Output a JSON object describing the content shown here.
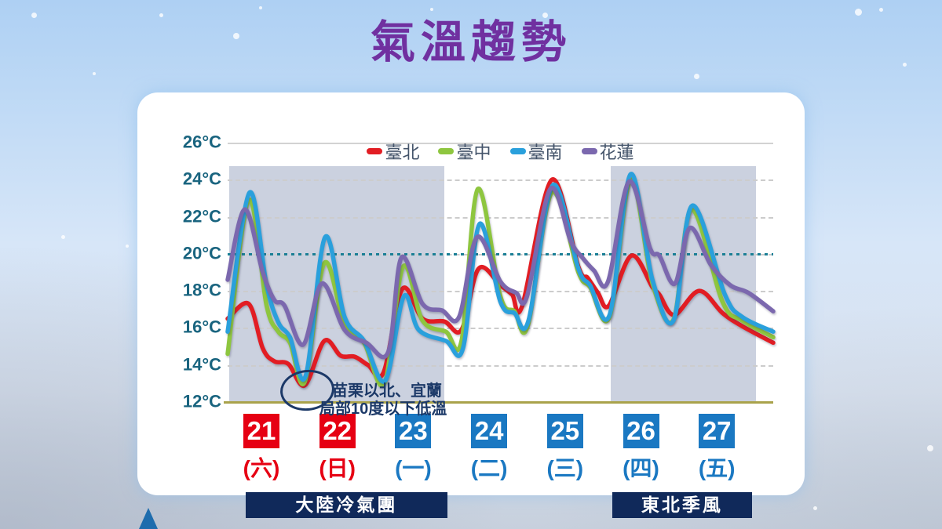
{
  "title": "氣溫趨勢",
  "colors": {
    "title": "#7030a0",
    "axis_label": "#19647f",
    "legend_text": "#44546a",
    "gridline": "#cccccc",
    "baseline": "#a9a24b",
    "reference_dotted": "#1b7f96",
    "shaded_band": "#cbd1df",
    "highlight_day": "#e60013",
    "normal_day": "#1a78c2",
    "cold_bar_bg": "#10295a",
    "cold_bar_text": "#ffffff",
    "annotation": "#1c3968",
    "panel_bg": "#ffffff"
  },
  "y_axis": {
    "labels": [
      "26°C",
      "24°C",
      "22°C",
      "20°C",
      "18°C",
      "16°C",
      "14°C",
      "12°C"
    ],
    "max": 26,
    "min": 12,
    "step": 2
  },
  "days": [
    {
      "date": "21",
      "weekday": "(六)",
      "highlight": true
    },
    {
      "date": "22",
      "weekday": "(日)",
      "highlight": true
    },
    {
      "date": "23",
      "weekday": "(一)",
      "highlight": false
    },
    {
      "date": "24",
      "weekday": "(二)",
      "highlight": false
    },
    {
      "date": "25",
      "weekday": "(三)",
      "highlight": false
    },
    {
      "date": "26",
      "weekday": "(四)",
      "highlight": false
    },
    {
      "date": "27",
      "weekday": "(五)",
      "highlight": false
    }
  ],
  "cold_periods": [
    {
      "label": "大陸冷氣團",
      "band_u": [
        0.02,
        2.78
      ],
      "bar_u": [
        0.23,
        2.82
      ]
    },
    {
      "label": "東北季風",
      "band_u": [
        4.91,
        6.78
      ],
      "bar_u": [
        4.93,
        6.73
      ]
    }
  ],
  "annotation": {
    "line1": "苗栗以北、宜蘭",
    "line2": "局部10度以下低溫"
  },
  "chart_data": {
    "type": "line",
    "title": "氣溫趨勢",
    "x_range_days": [
      0,
      7
    ],
    "x_tick_dates": [
      "21",
      "22",
      "23",
      "24",
      "25",
      "26",
      "27"
    ],
    "ylim": [
      12,
      26
    ],
    "y_unit": "°C",
    "reference_line_c": 20,
    "grid": true,
    "legend_position": "top",
    "series": [
      {
        "name": "臺北",
        "color": "#e21d23",
        "points": [
          [
            0,
            16.5
          ],
          [
            0.27,
            17.3
          ],
          [
            0.45,
            14.9
          ],
          [
            0.6,
            14.2
          ],
          [
            0.78,
            14.05
          ],
          [
            0.99,
            12.9
          ],
          [
            1.24,
            15.3
          ],
          [
            1.45,
            14.5
          ],
          [
            1.63,
            14.45
          ],
          [
            1.8,
            14.0
          ],
          [
            2.0,
            13.6
          ],
          [
            2.24,
            18.1
          ],
          [
            2.5,
            16.5
          ],
          [
            2.78,
            16.35
          ],
          [
            3.0,
            15.9
          ],
          [
            3.22,
            19.2
          ],
          [
            3.5,
            18.3
          ],
          [
            3.65,
            17.8
          ],
          [
            3.78,
            17.2
          ],
          [
            4.16,
            24.0
          ],
          [
            4.5,
            19.3
          ],
          [
            4.62,
            18.7
          ],
          [
            4.75,
            17.9
          ],
          [
            4.89,
            17.2
          ],
          [
            5.18,
            19.9
          ],
          [
            5.45,
            18.2
          ],
          [
            5.54,
            17.8
          ],
          [
            5.73,
            16.7
          ],
          [
            6.05,
            18.0
          ],
          [
            6.35,
            16.8
          ],
          [
            6.6,
            16.1
          ],
          [
            7,
            15.2
          ]
        ]
      },
      {
        "name": "臺中",
        "color": "#8ec63f",
        "points": [
          [
            0,
            14.6
          ],
          [
            0.27,
            22.9
          ],
          [
            0.5,
            17.2
          ],
          [
            0.65,
            15.8
          ],
          [
            0.8,
            15.2
          ],
          [
            0.99,
            13.1
          ],
          [
            1.24,
            19.5
          ],
          [
            1.5,
            16.2
          ],
          [
            1.75,
            15.2
          ],
          [
            2.01,
            13.0
          ],
          [
            2.25,
            19.3
          ],
          [
            2.5,
            16.4
          ],
          [
            2.8,
            15.8
          ],
          [
            3.0,
            15.3
          ],
          [
            3.21,
            23.5
          ],
          [
            3.5,
            17.7
          ],
          [
            3.68,
            16.9
          ],
          [
            3.85,
            16.1
          ],
          [
            4.16,
            23.3
          ],
          [
            4.5,
            19.0
          ],
          [
            4.65,
            18.2
          ],
          [
            4.9,
            16.6
          ],
          [
            5.17,
            24.0
          ],
          [
            5.45,
            18.4
          ],
          [
            5.72,
            16.45
          ],
          [
            5.95,
            22.4
          ],
          [
            6.35,
            17.4
          ],
          [
            6.6,
            16.4
          ],
          [
            7,
            15.5
          ]
        ]
      },
      {
        "name": "臺南",
        "color": "#2aa0dc",
        "points": [
          [
            0,
            15.8
          ],
          [
            0.28,
            23.3
          ],
          [
            0.5,
            18.3
          ],
          [
            0.65,
            16.3
          ],
          [
            0.8,
            15.5
          ],
          [
            1.0,
            13.4
          ],
          [
            1.25,
            20.9
          ],
          [
            1.5,
            16.6
          ],
          [
            1.75,
            15.3
          ],
          [
            2.02,
            13.15
          ],
          [
            2.26,
            17.7
          ],
          [
            2.45,
            15.9
          ],
          [
            2.8,
            15.3
          ],
          [
            3.02,
            14.9
          ],
          [
            3.23,
            21.6
          ],
          [
            3.5,
            17.4
          ],
          [
            3.68,
            16.8
          ],
          [
            3.86,
            16.4
          ],
          [
            4.17,
            23.7
          ],
          [
            4.5,
            19.2
          ],
          [
            4.65,
            18.3
          ],
          [
            4.9,
            16.7
          ],
          [
            5.17,
            24.3
          ],
          [
            5.45,
            18.6
          ],
          [
            5.72,
            16.4
          ],
          [
            5.96,
            22.6
          ],
          [
            6.38,
            17.8
          ],
          [
            6.6,
            16.6
          ],
          [
            7,
            15.8
          ]
        ]
      },
      {
        "name": "花蓮",
        "color": "#7b68ae",
        "points": [
          [
            0,
            18.6
          ],
          [
            0.22,
            22.4
          ],
          [
            0.45,
            19.0
          ],
          [
            0.6,
            17.5
          ],
          [
            0.73,
            17.2
          ],
          [
            0.97,
            15.1
          ],
          [
            1.21,
            18.4
          ],
          [
            1.5,
            15.9
          ],
          [
            1.78,
            15.2
          ],
          [
            2.06,
            14.7
          ],
          [
            2.23,
            19.8
          ],
          [
            2.5,
            17.3
          ],
          [
            2.75,
            16.95
          ],
          [
            2.97,
            16.6
          ],
          [
            3.2,
            20.9
          ],
          [
            3.5,
            18.5
          ],
          [
            3.7,
            17.9
          ],
          [
            3.84,
            17.7
          ],
          [
            4.14,
            23.5
          ],
          [
            4.4,
            20.7
          ],
          [
            4.55,
            19.8
          ],
          [
            4.7,
            19.1
          ],
          [
            4.88,
            18.5
          ],
          [
            5.15,
            23.9
          ],
          [
            5.42,
            20.3
          ],
          [
            5.54,
            19.9
          ],
          [
            5.74,
            18.4
          ],
          [
            5.93,
            21.4
          ],
          [
            6.2,
            19.4
          ],
          [
            6.45,
            18.3
          ],
          [
            6.68,
            17.9
          ],
          [
            7,
            16.9
          ]
        ]
      }
    ]
  }
}
